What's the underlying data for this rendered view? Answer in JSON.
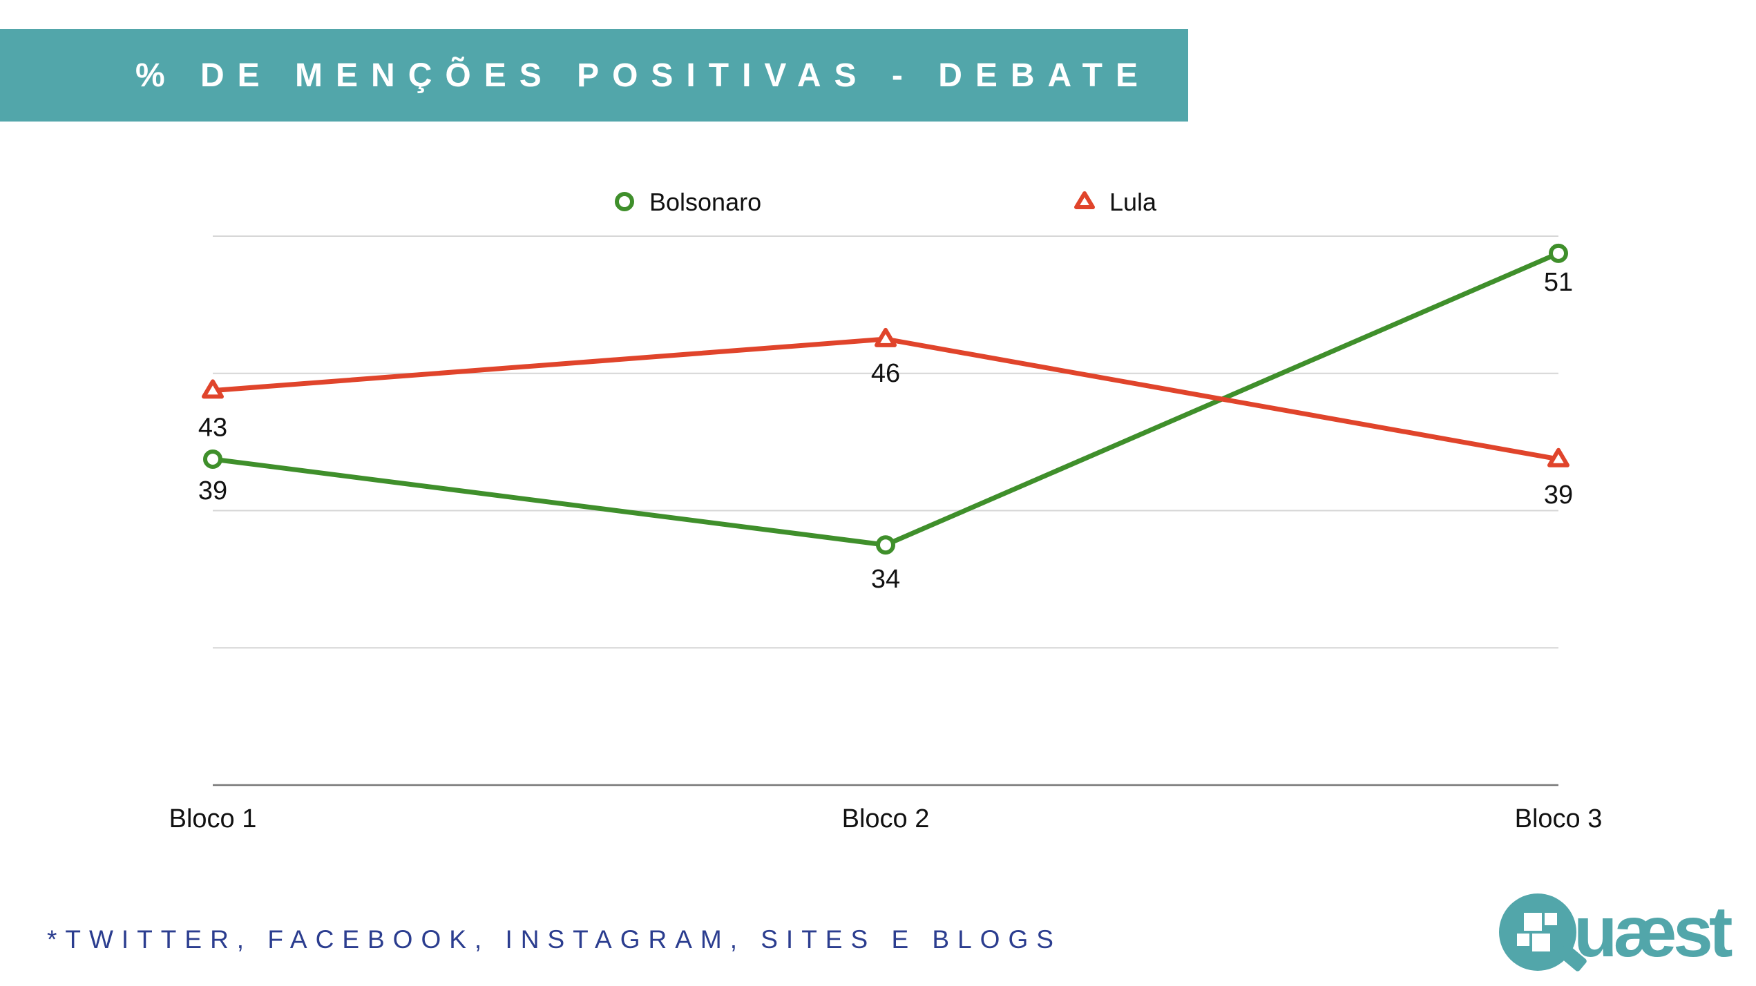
{
  "header": {
    "title": "% DE MENÇÕES POSITIVAS - DEBATE"
  },
  "footer": {
    "note": "*TWITTER, FACEBOOK, INSTAGRAM, SITES E BLOGS",
    "logo_text": "uæst",
    "logo_alt": "Quaest"
  },
  "colors": {
    "banner": "#52a6aa",
    "footnote": "#2b3d8f",
    "logo": "#52a6aa",
    "grid": "#d6d6d6",
    "axis": "#777777"
  },
  "chart_data": {
    "type": "line",
    "categories": [
      "Bloco 1",
      "Bloco 2",
      "Bloco 3"
    ],
    "series": [
      {
        "name": "Bolsonaro",
        "values": [
          39,
          34,
          51
        ],
        "color": "#3f8f2b",
        "marker": "circle"
      },
      {
        "name": "Lula",
        "values": [
          43,
          46,
          39
        ],
        "color": "#e0442b",
        "marker": "triangle"
      }
    ],
    "ylim": [
      20,
      52
    ],
    "grid": true,
    "legend": "top-center"
  }
}
